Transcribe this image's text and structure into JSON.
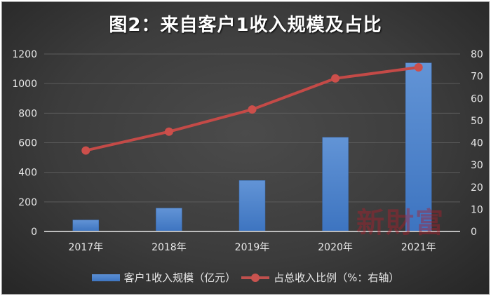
{
  "title": "图2：来自客户1收入规模及占比",
  "watermark": "新財富",
  "legend": {
    "bar_label": "客户1收入规模（亿元）",
    "line_label": "占总收入比例（%：右轴）"
  },
  "axes": {
    "left_ticks": [
      "0",
      "200",
      "400",
      "600",
      "800",
      "1000",
      "1200"
    ],
    "right_ticks": [
      "0",
      "10",
      "20",
      "30",
      "40",
      "50",
      "60",
      "70",
      "80"
    ],
    "x_ticks": [
      "2017年",
      "2018年",
      "2019年",
      "2020年",
      "2021年"
    ]
  },
  "colors": {
    "bar": "#4a7fc8",
    "line": "#c0504d",
    "background": "#3c3c3c",
    "grid": "#5a5a5a"
  },
  "chart_data": {
    "type": "bar+line",
    "title": "图2：来自客户1收入规模及占比",
    "categories": [
      "2017年",
      "2018年",
      "2019年",
      "2020年",
      "2021年"
    ],
    "series": [
      {
        "name": "客户1收入规模（亿元）",
        "type": "bar",
        "axis": "left",
        "values": [
          78,
          158,
          345,
          637,
          1140
        ]
      },
      {
        "name": "占总收入比例（%：右轴）",
        "type": "line",
        "axis": "right",
        "values": [
          36.5,
          45,
          55,
          69,
          74
        ]
      }
    ],
    "ylim_left": [
      0,
      1200
    ],
    "ylim_right": [
      0,
      80
    ],
    "xlabel": "",
    "ylabel": "",
    "grid": true,
    "legend_position": "bottom"
  }
}
